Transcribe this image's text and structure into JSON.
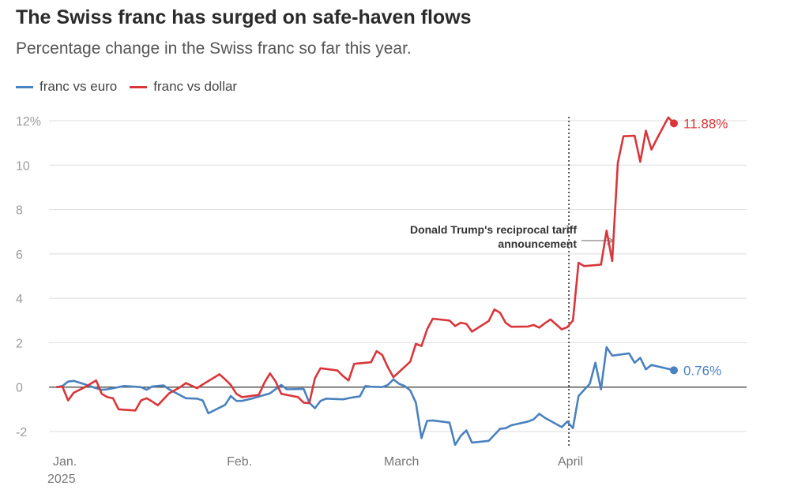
{
  "title": "The Swiss franc has surged on safe-haven flows",
  "subtitle": "Percentage change in the Swiss franc so far this year.",
  "chart_data": {
    "type": "line",
    "title": "The Swiss franc has surged on safe-haven flows",
    "subtitle": "Percentage change in the Swiss franc so far this year.",
    "ylabel": "",
    "xlabel": "",
    "ylim": [
      -2.5,
      12.5
    ],
    "y_ticks": [
      -2,
      0,
      2,
      4,
      6,
      8,
      10,
      12
    ],
    "y_tick_labels": [
      "-2",
      "0",
      "2",
      "4",
      "6",
      "8",
      "10",
      "12%"
    ],
    "x_ticks": [
      {
        "date": "2025-01-01",
        "label": "Jan.",
        "sublabel": "2025"
      },
      {
        "date": "2025-02-01",
        "label": "Feb.",
        "sublabel": ""
      },
      {
        "date": "2025-03-01",
        "label": "March",
        "sublabel": ""
      },
      {
        "date": "2025-04-01",
        "label": "April",
        "sublabel": ""
      }
    ],
    "grid": true,
    "legend_position": "top-left",
    "annotation": {
      "date": "2025-04-02",
      "lines": [
        "Donald Trump's reciprocal tariff",
        "announcement"
      ]
    },
    "series": [
      {
        "name": "franc vs euro",
        "color": "#4a81bf",
        "end_label": "0.76%",
        "points": [
          [
            "2025-01-01",
            0.0
          ],
          [
            "2025-01-02",
            0.05
          ],
          [
            "2025-01-03",
            0.25
          ],
          [
            "2025-01-04",
            0.28
          ],
          [
            "2025-01-06",
            0.12
          ],
          [
            "2025-01-08",
            -0.05
          ],
          [
            "2025-01-09",
            -0.12
          ],
          [
            "2025-01-10",
            -0.1
          ],
          [
            "2025-01-13",
            0.05
          ],
          [
            "2025-01-16",
            0.0
          ],
          [
            "2025-01-17",
            -0.12
          ],
          [
            "2025-01-18",
            0.03
          ],
          [
            "2025-01-20",
            0.08
          ],
          [
            "2025-01-21",
            -0.1
          ],
          [
            "2025-01-24",
            -0.5
          ],
          [
            "2025-01-26",
            -0.52
          ],
          [
            "2025-01-27",
            -0.6
          ],
          [
            "2025-01-28",
            -1.18
          ],
          [
            "2025-01-31",
            -0.8
          ],
          [
            "2025-02-01",
            -0.4
          ],
          [
            "2025-02-02",
            -0.62
          ],
          [
            "2025-02-03",
            -0.62
          ],
          [
            "2025-02-05",
            -0.5
          ],
          [
            "2025-02-07",
            -0.35
          ],
          [
            "2025-02-08",
            -0.28
          ],
          [
            "2025-02-10",
            0.1
          ],
          [
            "2025-02-11",
            -0.1
          ],
          [
            "2025-02-14",
            -0.08
          ],
          [
            "2025-02-15",
            -0.7
          ],
          [
            "2025-02-16",
            -0.95
          ],
          [
            "2025-02-17",
            -0.62
          ],
          [
            "2025-02-18",
            -0.52
          ],
          [
            "2025-02-21",
            -0.55
          ],
          [
            "2025-02-23",
            -0.45
          ],
          [
            "2025-02-24",
            -0.42
          ],
          [
            "2025-02-25",
            0.05
          ],
          [
            "2025-02-26",
            0.02
          ],
          [
            "2025-02-28",
            0.0
          ],
          [
            "2025-03-01",
            0.1
          ],
          [
            "2025-03-02",
            0.35
          ],
          [
            "2025-03-03",
            0.15
          ],
          [
            "2025-03-04",
            0.05
          ],
          [
            "2025-03-05",
            -0.15
          ],
          [
            "2025-03-06",
            -0.7
          ],
          [
            "2025-03-07",
            -2.3
          ],
          [
            "2025-03-08",
            -1.52
          ],
          [
            "2025-03-09",
            -1.5
          ],
          [
            "2025-03-12",
            -1.6
          ],
          [
            "2025-03-13",
            -2.6
          ],
          [
            "2025-03-14",
            -2.2
          ],
          [
            "2025-03-15",
            -1.95
          ],
          [
            "2025-03-16",
            -2.5
          ],
          [
            "2025-03-19",
            -2.42
          ],
          [
            "2025-03-21",
            -1.88
          ],
          [
            "2025-03-22",
            -1.85
          ],
          [
            "2025-03-23",
            -1.72
          ],
          [
            "2025-03-26",
            -1.55
          ],
          [
            "2025-03-27",
            -1.45
          ],
          [
            "2025-03-28",
            -1.2
          ],
          [
            "2025-03-29",
            -1.38
          ],
          [
            "2025-04-01",
            -1.8
          ],
          [
            "2025-04-02",
            -1.55
          ],
          [
            "2025-04-03",
            -1.85
          ],
          [
            "2025-04-04",
            -0.4
          ],
          [
            "2025-04-06",
            0.15
          ],
          [
            "2025-04-07",
            1.1
          ],
          [
            "2025-04-08",
            -0.1
          ],
          [
            "2025-04-09",
            1.8
          ],
          [
            "2025-04-10",
            1.42
          ],
          [
            "2025-04-13",
            1.52
          ],
          [
            "2025-04-14",
            1.1
          ],
          [
            "2025-04-15",
            1.32
          ],
          [
            "2025-04-16",
            0.8
          ],
          [
            "2025-04-17",
            1.0
          ],
          [
            "2025-04-21",
            0.76
          ]
        ]
      },
      {
        "name": "franc vs dollar",
        "color": "#d9363a",
        "end_label": "11.88%",
        "points": [
          [
            "2025-01-01",
            0.0
          ],
          [
            "2025-01-02",
            0.02
          ],
          [
            "2025-01-03",
            -0.6
          ],
          [
            "2025-01-04",
            -0.25
          ],
          [
            "2025-01-06",
            0.0
          ],
          [
            "2025-01-08",
            0.3
          ],
          [
            "2025-01-09",
            -0.3
          ],
          [
            "2025-01-10",
            -0.45
          ],
          [
            "2025-01-11",
            -0.5
          ],
          [
            "2025-01-12",
            -1.0
          ],
          [
            "2025-01-15",
            -1.05
          ],
          [
            "2025-01-16",
            -0.6
          ],
          [
            "2025-01-17",
            -0.5
          ],
          [
            "2025-01-18",
            -0.65
          ],
          [
            "2025-01-19",
            -0.82
          ],
          [
            "2025-01-21",
            -0.28
          ],
          [
            "2025-01-23",
            0.0
          ],
          [
            "2025-01-24",
            0.18
          ],
          [
            "2025-01-26",
            -0.05
          ],
          [
            "2025-01-27",
            0.12
          ],
          [
            "2025-01-30",
            0.58
          ],
          [
            "2025-01-31",
            0.35
          ],
          [
            "2025-02-01",
            0.1
          ],
          [
            "2025-02-02",
            -0.3
          ],
          [
            "2025-02-03",
            -0.45
          ],
          [
            "2025-02-06",
            -0.35
          ],
          [
            "2025-02-07",
            0.2
          ],
          [
            "2025-02-08",
            0.62
          ],
          [
            "2025-02-09",
            0.25
          ],
          [
            "2025-02-10",
            -0.3
          ],
          [
            "2025-02-13",
            -0.45
          ],
          [
            "2025-02-14",
            -0.7
          ],
          [
            "2025-02-15",
            -0.72
          ],
          [
            "2025-02-16",
            0.4
          ],
          [
            "2025-02-17",
            0.85
          ],
          [
            "2025-02-20",
            0.75
          ],
          [
            "2025-02-21",
            0.5
          ],
          [
            "2025-02-22",
            0.3
          ],
          [
            "2025-02-23",
            1.05
          ],
          [
            "2025-02-26",
            1.12
          ],
          [
            "2025-02-27",
            1.62
          ],
          [
            "2025-02-28",
            1.45
          ],
          [
            "2025-03-01",
            0.9
          ],
          [
            "2025-03-02",
            0.45
          ],
          [
            "2025-03-05",
            1.15
          ],
          [
            "2025-03-06",
            1.95
          ],
          [
            "2025-03-07",
            1.85
          ],
          [
            "2025-03-08",
            2.6
          ],
          [
            "2025-03-09",
            3.08
          ],
          [
            "2025-03-12",
            3.0
          ],
          [
            "2025-03-13",
            2.75
          ],
          [
            "2025-03-14",
            2.9
          ],
          [
            "2025-03-15",
            2.85
          ],
          [
            "2025-03-16",
            2.5
          ],
          [
            "2025-03-19",
            2.98
          ],
          [
            "2025-03-20",
            3.5
          ],
          [
            "2025-03-21",
            3.35
          ],
          [
            "2025-03-22",
            2.9
          ],
          [
            "2025-03-23",
            2.72
          ],
          [
            "2025-03-26",
            2.73
          ],
          [
            "2025-03-27",
            2.8
          ],
          [
            "2025-03-28",
            2.68
          ],
          [
            "2025-03-29",
            2.88
          ],
          [
            "2025-03-30",
            3.05
          ],
          [
            "2025-04-01",
            2.6
          ],
          [
            "2025-04-02",
            2.7
          ],
          [
            "2025-04-03",
            3.0
          ],
          [
            "2025-04-04",
            5.6
          ],
          [
            "2025-04-05",
            5.45
          ],
          [
            "2025-04-08",
            5.52
          ],
          [
            "2025-04-09",
            7.05
          ],
          [
            "2025-04-10",
            5.68
          ],
          [
            "2025-04-11",
            10.1
          ],
          [
            "2025-04-12",
            11.3
          ],
          [
            "2025-04-14",
            11.32
          ],
          [
            "2025-04-15",
            10.15
          ],
          [
            "2025-04-16",
            11.55
          ],
          [
            "2025-04-17",
            10.7
          ],
          [
            "2025-04-18",
            11.2
          ],
          [
            "2025-04-20",
            12.15
          ],
          [
            "2025-04-21",
            11.88
          ]
        ]
      }
    ]
  }
}
